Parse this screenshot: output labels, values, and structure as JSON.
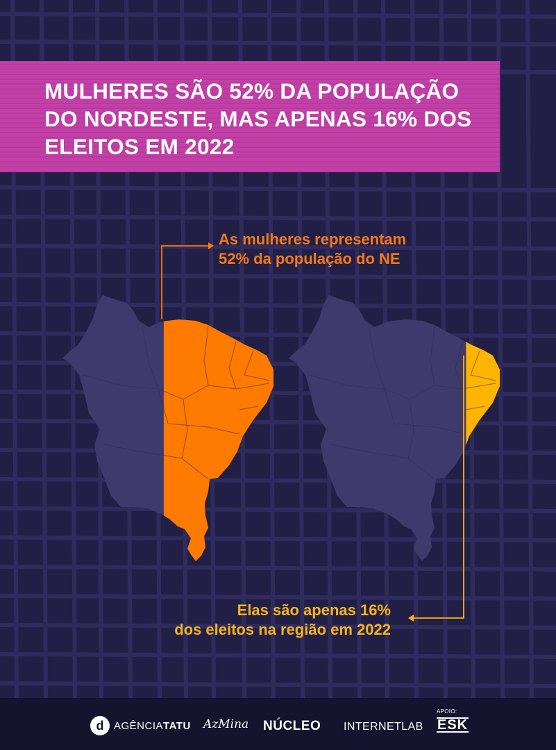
{
  "title": {
    "lines": [
      "MULHERES SÃO 52% DA POPULAÇÃO",
      "DO NORDESTE, MAS APENAS 16% DOS",
      "ELEITOS EM 2022"
    ]
  },
  "annotations": {
    "women_population": {
      "lines": [
        "As mulheres representam",
        "52% da população do NE"
      ],
      "share": 0.52
    },
    "women_elected": {
      "lines": [
        "Elas são apenas 16%",
        "dos eleitos na região em 2022"
      ],
      "share": 0.16
    }
  },
  "colors": {
    "background": "#221f47",
    "map_base": "#3f3a6b",
    "population_highlight": "#ff7a00",
    "elected_highlight": "#ffb400",
    "title_band": "#c13fa6"
  },
  "footer": {
    "logos": {
      "agencia_tatu_prefix": "AGÊNCIA",
      "agencia_tatu_bold": "TATU",
      "azmina": "AzMina",
      "nucleo": "NÚCLEO",
      "internetlab": "INTERNETLAB",
      "apoio_label": "APOIO:",
      "esk": "ESK"
    }
  }
}
